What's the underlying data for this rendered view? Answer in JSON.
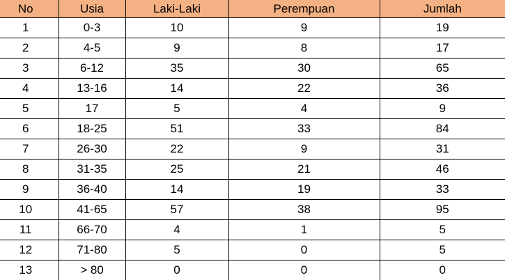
{
  "colors": {
    "header_bg": "#F4B183"
  },
  "headers": [
    "No",
    "Usia",
    "Laki-Laki",
    "Perempuan",
    "Jumlah"
  ],
  "rows": [
    [
      "1",
      "0-3",
      "10",
      "9",
      "19"
    ],
    [
      "2",
      "4-5",
      "9",
      "8",
      "17"
    ],
    [
      "3",
      "6-12",
      "35",
      "30",
      "65"
    ],
    [
      "4",
      "13-16",
      "14",
      "22",
      "36"
    ],
    [
      "5",
      "17",
      "5",
      "4",
      "9"
    ],
    [
      "6",
      "18-25",
      "51",
      "33",
      "84"
    ],
    [
      "7",
      "26-30",
      "22",
      "9",
      "31"
    ],
    [
      "8",
      "31-35",
      "25",
      "21",
      "46"
    ],
    [
      "9",
      "36-40",
      "14",
      "19",
      "33"
    ],
    [
      "10",
      "41-65",
      "57",
      "38",
      "95"
    ],
    [
      "11",
      "66-70",
      "4",
      "1",
      "5"
    ],
    [
      "12",
      "71-80",
      "5",
      "0",
      "5"
    ],
    [
      "13",
      "> 80",
      "0",
      "0",
      "0"
    ]
  ]
}
